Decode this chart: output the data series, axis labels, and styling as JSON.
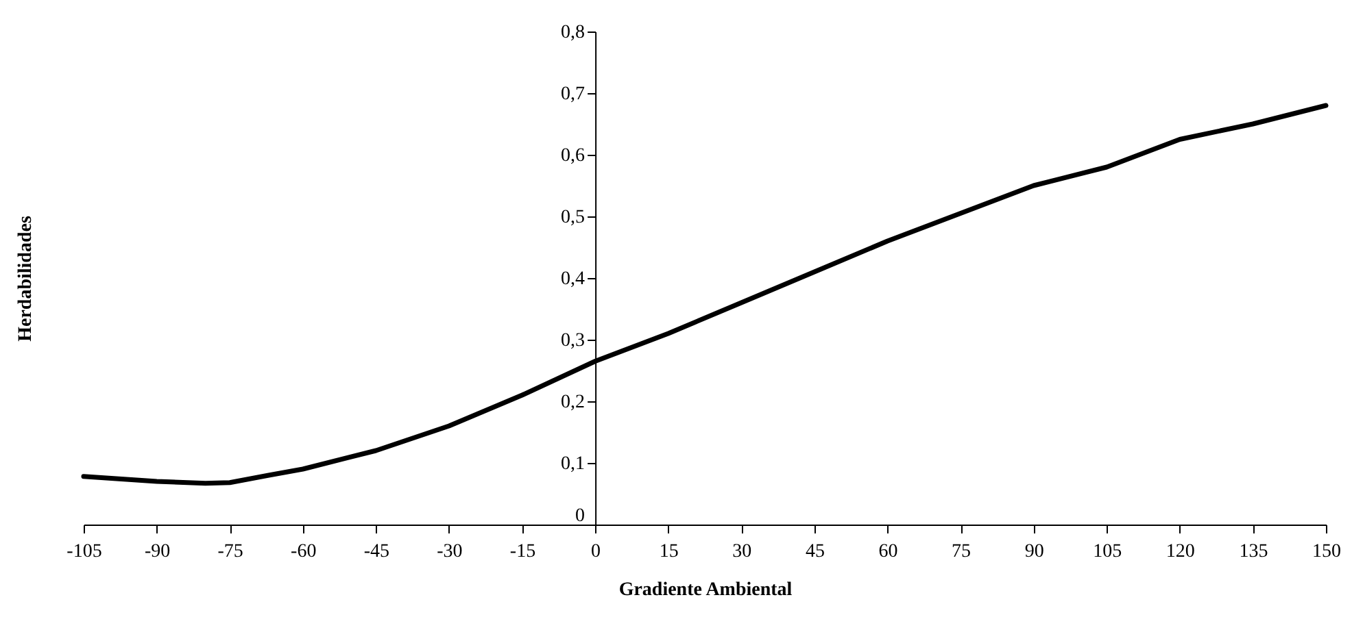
{
  "chart_data": {
    "type": "line",
    "xlabel": "Gradiente Ambiental",
    "ylabel": "Herdabilidades",
    "x": [
      -105,
      -90,
      -80,
      -75,
      -67,
      -60,
      -45,
      -30,
      -15,
      0,
      15,
      30,
      45,
      60,
      75,
      90,
      105,
      120,
      135,
      150
    ],
    "series": [
      {
        "color": "#000000",
        "values": [
          0.078,
          0.07,
          0.067,
          0.068,
          0.08,
          0.09,
          0.12,
          0.16,
          0.21,
          0.265,
          0.31,
          0.36,
          0.41,
          0.46,
          0.505,
          0.55,
          0.58,
          0.625,
          0.65,
          0.68
        ]
      }
    ],
    "xlim": [
      -105,
      150
    ],
    "xticks": [
      -105,
      -90,
      -75,
      -60,
      -45,
      -30,
      -15,
      0,
      15,
      30,
      45,
      60,
      75,
      90,
      105,
      120,
      135,
      150
    ],
    "ylim": [
      0,
      0.8
    ],
    "yticks": [
      {
        "value": 0,
        "label": "0"
      },
      {
        "value": 0.1,
        "label": "0,1"
      },
      {
        "value": 0.2,
        "label": "0,2"
      },
      {
        "value": 0.3,
        "label": "0,3"
      },
      {
        "value": 0.4,
        "label": "0,4"
      },
      {
        "value": 0.5,
        "label": "0,5"
      },
      {
        "value": 0.6,
        "label": "0,6"
      },
      {
        "value": 0.7,
        "label": "0,7"
      },
      {
        "value": 0.8,
        "label": "0,8"
      }
    ],
    "grid": false,
    "marker": "none",
    "line_style": "solid"
  }
}
